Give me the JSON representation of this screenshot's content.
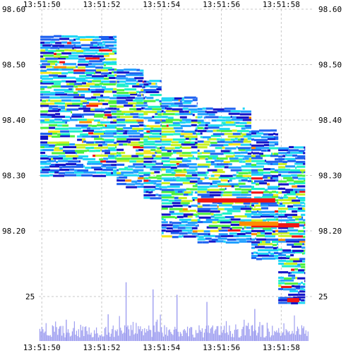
{
  "chart_data": {
    "type": "heatmap",
    "title": "",
    "xlabel": "",
    "ylabel": "",
    "x_ticks": [
      "13:51:50",
      "13:51:52",
      "13:51:54",
      "13:51:56",
      "13:51:58"
    ],
    "x_tick_seconds": [
      50,
      52,
      54,
      56,
      58
    ],
    "xlim_seconds": [
      49.9,
      59.1
    ],
    "price_ticks": [
      "98.60",
      "98.50",
      "98.40",
      "98.30",
      "98.20"
    ],
    "price_tick_values": [
      98.6,
      98.5,
      98.4,
      98.3,
      98.2
    ],
    "ylim_price": [
      98.05,
      98.6
    ],
    "volume_ticks": [
      "25"
    ],
    "volume_tick_values": [
      25
    ],
    "grid": true,
    "grid_style": "dashed",
    "colors": {
      "grid": "#c8c8c8",
      "volume_bars": "#9e9ef0",
      "background": "#ffffff",
      "scale": [
        "#1515c8",
        "#1e62f0",
        "#21a0ff",
        "#1fd6f5",
        "#1ff0c8",
        "#4df03f",
        "#c8f022",
        "#f5e61e",
        "#ff8c00",
        "#f01414"
      ]
    },
    "series": [
      {
        "kind": "order-book-heatmap",
        "segments": [
          {
            "t": [
              49.95,
              52.5
            ],
            "p": [
              98.3,
              98.55
            ]
          },
          {
            "t": [
              52.5,
              53.4
            ],
            "p": [
              98.28,
              98.49
            ]
          },
          {
            "t": [
              53.4,
              54.0
            ],
            "p": [
              98.26,
              98.47
            ]
          },
          {
            "t": [
              54.0,
              55.2
            ],
            "p": [
              98.19,
              98.44
            ]
          },
          {
            "t": [
              55.2,
              57.0
            ],
            "p": [
              98.18,
              98.42
            ]
          },
          {
            "t": [
              57.0,
              57.9
            ],
            "p": [
              98.15,
              98.38
            ]
          },
          {
            "t": [
              57.9,
              58.8
            ],
            "p": [
              98.07,
              98.35
            ]
          }
        ]
      },
      {
        "kind": "volume",
        "max_shown": 35,
        "spikes": [
          {
            "t": 52.8,
            "v": 33
          },
          {
            "t": 53.7,
            "v": 29
          },
          {
            "t": 54.5,
            "v": 26
          },
          {
            "t": 55.5,
            "v": 22
          },
          {
            "t": 57.1,
            "v": 18
          },
          {
            "t": 52.2,
            "v": 15
          },
          {
            "t": 50.8,
            "v": 12
          }
        ]
      }
    ]
  }
}
